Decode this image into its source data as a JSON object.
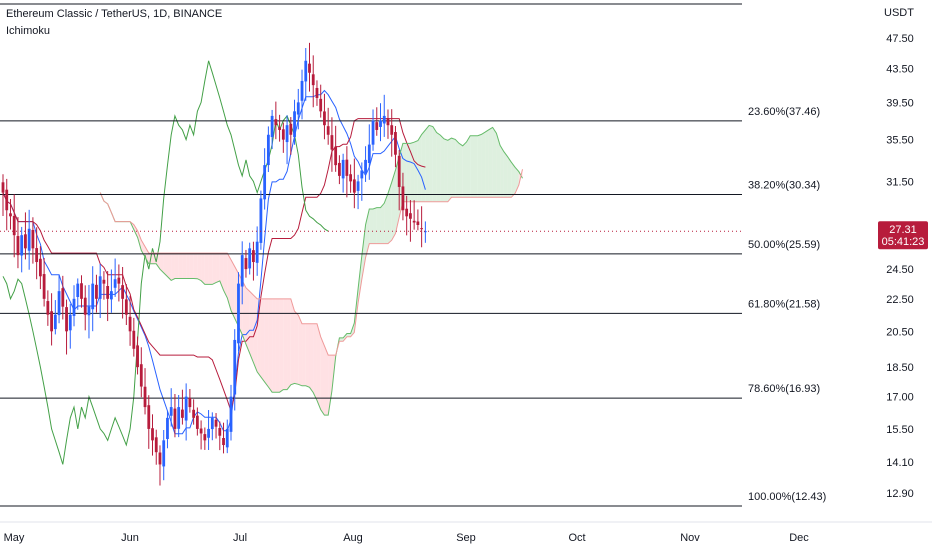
{
  "header": {
    "title": "Ethereum Classic / TetherUS, 1D, BINANCE",
    "indicator": "Ichimoku"
  },
  "price_axis": {
    "currency": "USDT",
    "labels": [
      "47.50",
      "43.50",
      "39.50",
      "35.50",
      "31.50",
      "24.50",
      "22.50",
      "20.50",
      "18.50",
      "17.00",
      "15.50",
      "14.10",
      "12.90"
    ]
  },
  "time_axis": {
    "labels": [
      "May",
      "Jun",
      "Jul",
      "Aug",
      "Sep",
      "Oct",
      "Nov",
      "Dec"
    ]
  },
  "last_price": {
    "price": "27.31",
    "countdown": "05:41:23",
    "value": 27.31
  },
  "colors": {
    "up": "#2962ff",
    "down": "#b71c3c",
    "cloud_bull": "#c8e6c9",
    "cloud_bear": "#ffcdd2",
    "conversion": "#2962ff",
    "base": "#b71c3c",
    "lagging": "#43a047",
    "fib": "#131722",
    "grid": "#ffffff"
  },
  "chart_data": {
    "type": "candlestick",
    "title": "Ethereum Classic / TetherUS, 1D, BINANCE",
    "indicator": "Ichimoku",
    "y_unit": "USDT",
    "y_scale": "log",
    "ylim": [
      12.0,
      52.0
    ],
    "x_axis_ticks": [
      "May",
      "Jun",
      "Jul",
      "Aug",
      "Sep",
      "Oct",
      "Nov",
      "Dec"
    ],
    "fibonacci_levels": [
      {
        "label": "23.60%(37.46)",
        "ratio": 0.236,
        "price": 37.46
      },
      {
        "label": "38.20%(30.34)",
        "ratio": 0.382,
        "price": 30.34
      },
      {
        "label": "50.00%(25.59)",
        "ratio": 0.5,
        "price": 25.59
      },
      {
        "label": "61.80%(21.58)",
        "ratio": 0.618,
        "price": 21.58
      },
      {
        "label": "78.60%(16.93)",
        "ratio": 0.786,
        "price": 16.93
      },
      {
        "label": "100.00%(12.43)",
        "ratio": 1.0,
        "price": 12.43
      }
    ],
    "fib_top_price": 52.0,
    "candles_approx_close": [
      30.5,
      29.0,
      28.5,
      27.0,
      25.5,
      27.0,
      26.0,
      27.5,
      26.0,
      25.0,
      24.0,
      22.5,
      21.5,
      20.5,
      21.5,
      23.0,
      22.0,
      20.5,
      21.5,
      22.5,
      23.5,
      22.5,
      21.5,
      22.0,
      23.5,
      22.5,
      24.0,
      23.5,
      22.5,
      23.0,
      23.8,
      23.5,
      22.5,
      21.5,
      20.5,
      19.5,
      18.5,
      17.5,
      16.5,
      15.5,
      15.0,
      14.5,
      14.0,
      15.0,
      16.0,
      16.5,
      15.5,
      16.5,
      16.0,
      17.0,
      16.5,
      16.0,
      15.5,
      15.3,
      15.0,
      15.5,
      16.0,
      15.6,
      15.2,
      14.8,
      15.5,
      17.0,
      20.0,
      23.5,
      25.5,
      24.5,
      26.0,
      25.0,
      26.5,
      30.0,
      33.0,
      36.0,
      38.0,
      37.0,
      36.5,
      35.5,
      37.0,
      36.0,
      38.5,
      39.5,
      42.0,
      44.5,
      43.0,
      41.5,
      40.0,
      38.5,
      37.0,
      36.0,
      34.5,
      33.0,
      32.0,
      33.5,
      32.0,
      31.5,
      30.5,
      31.5,
      32.5,
      33.5,
      35.0,
      37.5,
      36.5,
      37.5,
      38.0,
      37.0,
      36.0,
      34.0,
      31.0,
      29.0,
      28.5,
      28.3,
      28.0,
      27.8,
      27.5,
      27.31
    ]
  }
}
